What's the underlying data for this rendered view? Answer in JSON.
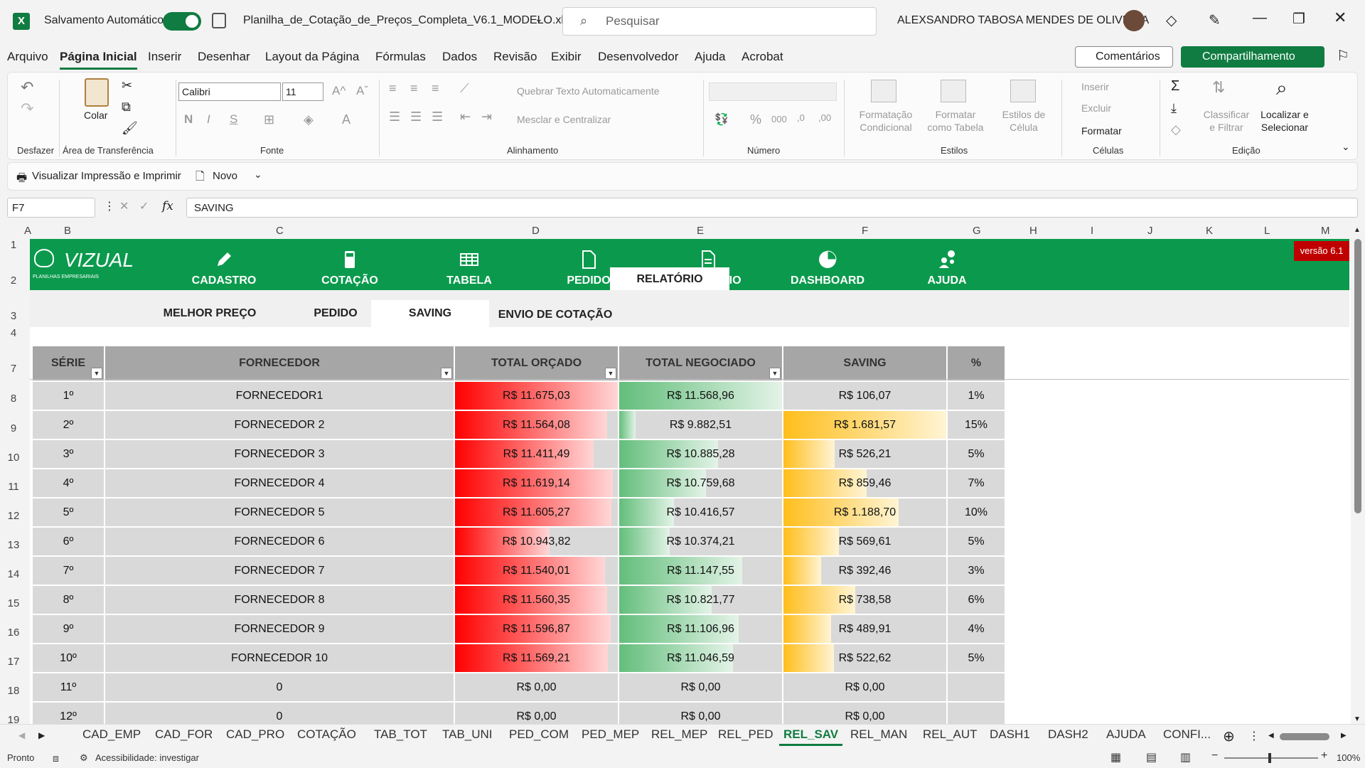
{
  "titlebar": {
    "autosave_label": "Salvamento Automático",
    "filename": "Planilha_de_Cotação_de_Preços_Completa_V6.1_MODELO.xl...",
    "search_placeholder": "Pesquisar",
    "user": "ALEXSANDRO TABOSA MENDES DE OLIVEIRA"
  },
  "menu": [
    "Arquivo",
    "Página Inicial",
    "Inserir",
    "Desenhar",
    "Layout da Página",
    "Fórmulas",
    "Dados",
    "Revisão",
    "Exibir",
    "Desenvolvedor",
    "Ajuda",
    "Acrobat"
  ],
  "actions": {
    "comments": "Comentários",
    "share": "Compartilhamento"
  },
  "ribbon": {
    "undo_label": "Desfazer",
    "paste": "Colar",
    "clipboard_label": "Área de Transferência",
    "font_name": "Calibri",
    "font_size": "11",
    "font_label": "Fonte",
    "bold": "N",
    "italic": "I",
    "underline": "S",
    "wrap": "Quebrar Texto Automaticamente",
    "merge": "Mesclar e Centralizar",
    "align_label": "Alinhamento",
    "number_label": "Número",
    "cond_format": "Formatação Condicional",
    "format_table": "Formatar como Tabela",
    "cell_styles": "Estilos de Célula",
    "styles_label": "Estilos",
    "insert": "Inserir",
    "delete": "Excluir",
    "format": "Formatar",
    "cells_label": "Células",
    "sort_filter": "Classificar e Filtrar",
    "find_select": "Localizar e Selecionar",
    "edit_label": "Edição"
  },
  "qat": {
    "print_preview": "Visualizar Impressão e Imprimir",
    "new": "Novo"
  },
  "formula": {
    "namebox": "F7",
    "fx": "fx",
    "value": "SAVING"
  },
  "columns": [
    "A",
    "B",
    "C",
    "D",
    "E",
    "F",
    "G",
    "H",
    "I",
    "J",
    "K",
    "L",
    "M"
  ],
  "rows": [
    "1",
    "2",
    "3",
    "4",
    "7",
    "8",
    "9",
    "10",
    "11",
    "12",
    "13",
    "14",
    "15",
    "16",
    "17",
    "18",
    "19"
  ],
  "app": {
    "logo": "VIZUAL",
    "logo_sub": "PLANILHAS EMPRESARIAIS",
    "version": "versão 6.1",
    "nav": [
      "CADASTRO",
      "COTAÇÃO",
      "TABELA",
      "PEDIDO",
      "RELATÓRIO",
      "DASHBOARD",
      "AJUDA"
    ],
    "subnav": [
      "MELHOR PREÇO",
      "PEDIDO",
      "SAVING",
      "ENVIO DE COTAÇÃO"
    ]
  },
  "table": {
    "headers": [
      "SÉRIE",
      "FORNECEDOR",
      "TOTAL ORÇADO",
      "TOTAL NEGOCIADO",
      "SAVING",
      "%"
    ],
    "rows": [
      {
        "serie": "1º",
        "fornecedor": "FORNECEDOR1",
        "orcado": "R$ 11.675,03",
        "negociado": "R$ 11.568,96",
        "saving": "R$ 106,07",
        "pct": "1%",
        "orcado_v": 11675.03,
        "negociado_v": 11568.96,
        "saving_v": 106.07
      },
      {
        "serie": "2º",
        "fornecedor": "FORNECEDOR 2",
        "orcado": "R$ 11.564,08",
        "negociado": "R$ 9.882,51",
        "saving": "R$ 1.681,57",
        "pct": "15%",
        "orcado_v": 11564.08,
        "negociado_v": 9882.51,
        "saving_v": 1681.57
      },
      {
        "serie": "3º",
        "fornecedor": "FORNECEDOR 3",
        "orcado": "R$ 11.411,49",
        "negociado": "R$ 10.885,28",
        "saving": "R$ 526,21",
        "pct": "5%",
        "orcado_v": 11411.49,
        "negociado_v": 10885.28,
        "saving_v": 526.21
      },
      {
        "serie": "4º",
        "fornecedor": "FORNECEDOR 4",
        "orcado": "R$ 11.619,14",
        "negociado": "R$ 10.759,68",
        "saving": "R$ 859,46",
        "pct": "7%",
        "orcado_v": 11619.14,
        "negociado_v": 10759.68,
        "saving_v": 859.46
      },
      {
        "serie": "5º",
        "fornecedor": "FORNECEDOR 5",
        "orcado": "R$ 11.605,27",
        "negociado": "R$ 10.416,57",
        "saving": "R$ 1.188,70",
        "pct": "10%",
        "orcado_v": 11605.27,
        "negociado_v": 10416.57,
        "saving_v": 1188.7
      },
      {
        "serie": "6º",
        "fornecedor": "FORNECEDOR 6",
        "orcado": "R$ 10.943,82",
        "negociado": "R$ 10.374,21",
        "saving": "R$ 569,61",
        "pct": "5%",
        "orcado_v": 10943.82,
        "negociado_v": 10374.21,
        "saving_v": 569.61
      },
      {
        "serie": "7º",
        "fornecedor": "FORNECEDOR 7",
        "orcado": "R$ 11.540,01",
        "negociado": "R$ 11.147,55",
        "saving": "R$ 392,46",
        "pct": "3%",
        "orcado_v": 11540.01,
        "negociado_v": 11147.55,
        "saving_v": 392.46
      },
      {
        "serie": "8º",
        "fornecedor": "FORNECEDOR 8",
        "orcado": "R$ 11.560,35",
        "negociado": "R$ 10.821,77",
        "saving": "R$ 738,58",
        "pct": "6%",
        "orcado_v": 11560.35,
        "negociado_v": 10821.77,
        "saving_v": 738.58
      },
      {
        "serie": "9º",
        "fornecedor": "FORNECEDOR 9",
        "orcado": "R$ 11.596,87",
        "negociado": "R$ 11.106,96",
        "saving": "R$ 489,91",
        "pct": "4%",
        "orcado_v": 11596.87,
        "negociado_v": 11106.96,
        "saving_v": 489.91
      },
      {
        "serie": "10º",
        "fornecedor": "FORNECEDOR 10",
        "orcado": "R$ 11.569,21",
        "negociado": "R$ 11.046,59",
        "saving": "R$ 522,62",
        "pct": "5%",
        "orcado_v": 11569.21,
        "negociado_v": 11046.59,
        "saving_v": 522.62
      },
      {
        "serie": "11º",
        "fornecedor": "0",
        "orcado": "R$ 0,00",
        "negociado": "R$ 0,00",
        "saving": "R$ 0,00",
        "pct": "",
        "orcado_v": 0,
        "negociado_v": 0,
        "saving_v": 0
      },
      {
        "serie": "12º",
        "fornecedor": "0",
        "orcado": "R$ 0,00",
        "negociado": "R$ 0,00",
        "saving": "R$ 0,00",
        "pct": "",
        "orcado_v": 0,
        "negociado_v": 0,
        "saving_v": 0
      }
    ]
  },
  "sheets": [
    "CAD_EMP",
    "CAD_FOR",
    "CAD_PRO",
    "COTAÇÃO",
    "TAB_TOT",
    "TAB_UNI",
    "PED_COM",
    "PED_MEP",
    "REL_MEP",
    "REL_PED",
    "REL_SAV",
    "REL_MAN",
    "REL_AUT",
    "DASH1",
    "DASH2",
    "AJUDA",
    "CONFI..."
  ],
  "active_sheet": "REL_SAV",
  "status": {
    "ready": "Pronto",
    "accessibility": "Acessibilidade: investigar",
    "zoom": "100%"
  },
  "colors": {
    "excel_green": "#107c41",
    "app_green": "#0b9a4d",
    "red_bar": "#ff0000",
    "green_bar": "#63be7b",
    "yellow_bar": "#ffbe1c",
    "version_red": "#c00000"
  }
}
